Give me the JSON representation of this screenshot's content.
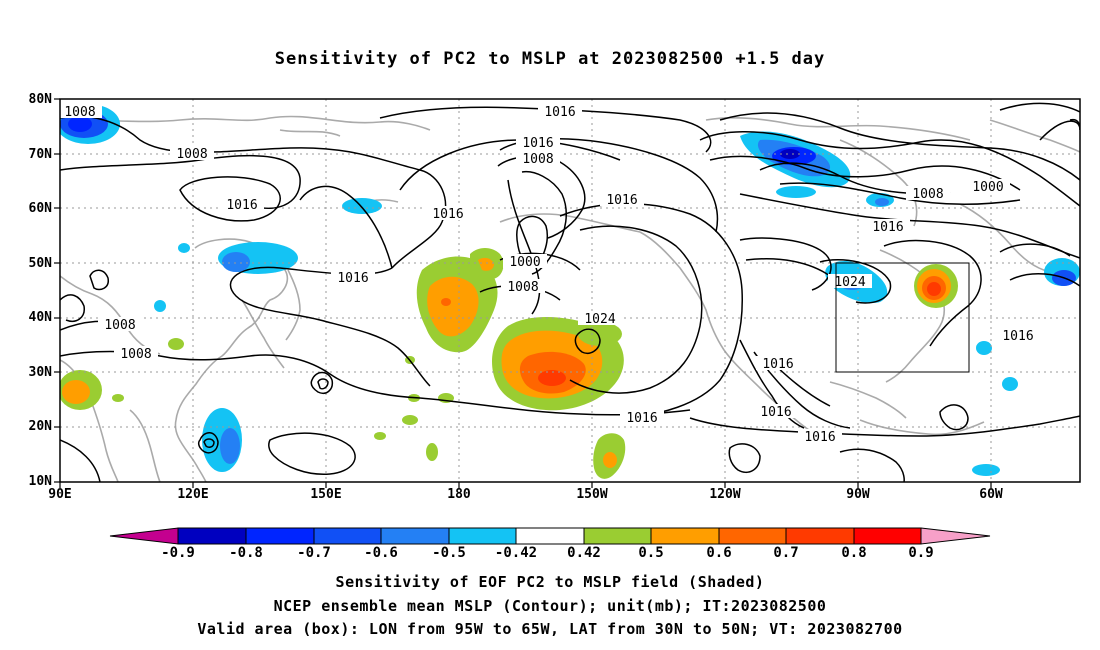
{
  "title": "Sensitivity of PC2 to MSLP at 2023082500 +1.5 day",
  "map": {
    "lat_labels": [
      "80N",
      "70N",
      "60N",
      "50N",
      "40N",
      "30N",
      "20N",
      "10N"
    ],
    "lon_labels": [
      "90E",
      "120E",
      "150E",
      "180",
      "150W",
      "120W",
      "90W",
      "60W"
    ],
    "contour_labels": [
      "1008",
      "1016",
      "1016",
      "1008",
      "1008",
      "1016",
      "1016",
      "1016",
      "1000",
      "1008",
      "1016",
      "1016",
      "1008",
      "1000",
      "1016",
      "1024",
      "1024",
      "1016",
      "1008",
      "1008",
      "1016",
      "1016",
      "1016"
    ],
    "land_color": "#aaaaaa",
    "contour_color": "#000000",
    "valid_box": {
      "lon_from": "95W",
      "lon_to": "65W",
      "lat_from": "30N",
      "lat_to": "50N"
    }
  },
  "colorbar": {
    "labels": [
      "-0.9",
      "-0.8",
      "-0.7",
      "-0.6",
      "-0.5",
      "-0.42",
      "0.42",
      "0.5",
      "0.6",
      "0.7",
      "0.8",
      "0.9"
    ],
    "colors": [
      "#c4008f",
      "#0000c0",
      "#0025ff",
      "#1150f5",
      "#2480f4",
      "#14c3f4",
      "#ffffff",
      "#9acd32",
      "#ff9e00",
      "#ff6600",
      "#ff3a00",
      "#ff0000",
      "#f7a0c8"
    ]
  },
  "caption": {
    "line1": "Sensitivity of EOF PC2 to MSLP field (Shaded)",
    "line2": "NCEP ensemble mean MSLP (Contour); unit(mb); IT:2023082500",
    "line3": "Valid area (box): LON from 95W to 65W, LAT from 30N to 50N; VT: 2023082700"
  }
}
